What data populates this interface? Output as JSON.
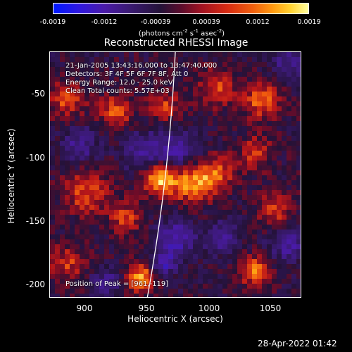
{
  "colorbar": {
    "ticks": [
      "-0.0019",
      "-0.0012",
      "-0.00039",
      "0.00039",
      "0.0012",
      "0.0019"
    ],
    "units_main": "(photons cm",
    "units_sup1": "-2",
    "units_mid": " s",
    "units_sup2": "-1",
    "units_tail": " asec",
    "units_sup3": "-2",
    "units_end": ")"
  },
  "title": "Reconstructed RHESSI Image",
  "annotations": {
    "time_range": "21-Jan-2005 13:43:16.000 to 13:47:40.000",
    "detectors": "Detectors: 3F 4F 5F 6F 7F 8F, Att 0",
    "energy": "Energy Range: 12.0 - 25.0 keV",
    "method": "Clean     Total counts: 5.57E+03",
    "peak": "Position of Peak = [961,-119]"
  },
  "axes": {
    "x_label": "Heliocentric X (arcsec)",
    "y_label": "Heliocentric Y (arcsec)",
    "x_ticks": [
      "900",
      "950",
      "1000",
      "1050"
    ],
    "y_ticks": [
      "-50",
      "-100",
      "-150",
      "-200"
    ],
    "x_range": [
      877,
      1071
    ],
    "y_range": [
      -212,
      -23
    ]
  },
  "timestamp": "28-Apr-2022 01:42",
  "colors": {
    "neg_strong": "#0018ff",
    "neg_mid": "#4a1aa8",
    "neutral": "#241238",
    "pos_mid": "#d62a12",
    "pos_strong": "#ffffa0"
  },
  "image_sources": [
    {
      "x": 961,
      "y": -119,
      "amp": 1.0,
      "sigma": 9
    },
    {
      "x": 985,
      "y": -123,
      "amp": 0.7,
      "sigma": 11
    },
    {
      "x": 1005,
      "y": -117,
      "amp": 0.55,
      "sigma": 10
    },
    {
      "x": 947,
      "y": -196,
      "amp": 0.75,
      "sigma": 8
    },
    {
      "x": 1035,
      "y": -191,
      "amp": 0.7,
      "sigma": 8
    },
    {
      "x": 905,
      "y": -130,
      "amp": 0.55,
      "sigma": 12
    },
    {
      "x": 890,
      "y": -60,
      "amp": 0.5,
      "sigma": 10
    },
    {
      "x": 928,
      "y": -68,
      "amp": 0.55,
      "sigma": 9
    },
    {
      "x": 1005,
      "y": -50,
      "amp": 0.5,
      "sigma": 10
    },
    {
      "x": 1040,
      "y": -60,
      "amp": 0.6,
      "sigma": 10
    },
    {
      "x": 1035,
      "y": -100,
      "amp": 0.45,
      "sigma": 9
    },
    {
      "x": 1050,
      "y": -145,
      "amp": 0.5,
      "sigma": 9
    },
    {
      "x": 965,
      "y": -65,
      "amp": 0.45,
      "sigma": 9
    },
    {
      "x": 890,
      "y": -185,
      "amp": 0.45,
      "sigma": 10
    },
    {
      "x": 935,
      "y": -150,
      "amp": 0.45,
      "sigma": 9
    },
    {
      "x": 975,
      "y": -100,
      "amp": -0.55,
      "sigma": 12
    },
    {
      "x": 950,
      "y": -100,
      "amp": -0.5,
      "sigma": 11
    },
    {
      "x": 975,
      "y": -165,
      "amp": -0.6,
      "sigma": 10
    },
    {
      "x": 965,
      "y": -185,
      "amp": -0.55,
      "sigma": 7
    },
    {
      "x": 1060,
      "y": -170,
      "amp": -0.5,
      "sigma": 10
    },
    {
      "x": 900,
      "y": -95,
      "amp": -0.45,
      "sigma": 10
    },
    {
      "x": 1010,
      "y": -165,
      "amp": -0.45,
      "sigma": 9
    },
    {
      "x": 1060,
      "y": -30,
      "amp": -0.45,
      "sigma": 9
    },
    {
      "x": 920,
      "y": -200,
      "amp": -0.45,
      "sigma": 8
    }
  ]
}
